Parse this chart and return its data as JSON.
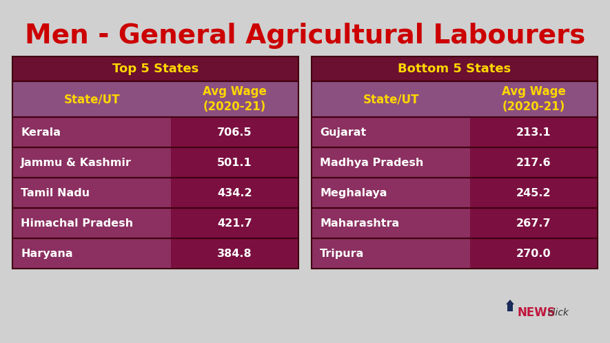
{
  "title": "Men - General Agricultural Labourers",
  "title_color": "#CC0000",
  "title_fontsize": 28,
  "background_color": "#D0D0D0",
  "table_header_dark": "#6B1030",
  "table_header_light": "#8B5080",
  "table_row_col1": "#8B3060",
  "table_row_col2": "#7B1040",
  "table_text_white": "#FFFFFF",
  "table_text_yellow": "#FFD700",
  "top_title": "Top 5 States",
  "bottom_title": "Bottom 5 States",
  "col_header_state": "State/UT",
  "col_header_wage": "Avg Wage\n(2020-21)",
  "top_states": [
    "Kerala",
    "Jammu & Kashmir",
    "Tamil Nadu",
    "Himachal Pradesh",
    "Haryana"
  ],
  "top_wages": [
    "706.5",
    "501.1",
    "434.2",
    "421.7",
    "384.8"
  ],
  "bottom_states": [
    "Gujarat",
    "Madhya Pradesh",
    "Meghalaya",
    "Maharashtra",
    "Tripura"
  ],
  "bottom_wages": [
    "213.1",
    "217.6",
    "245.2",
    "267.7",
    "270.0"
  ],
  "newsclick_news_color": "#C0143C",
  "newsclick_click_color": "#333333",
  "newsclick_arrow_color": "#1A2B5A"
}
